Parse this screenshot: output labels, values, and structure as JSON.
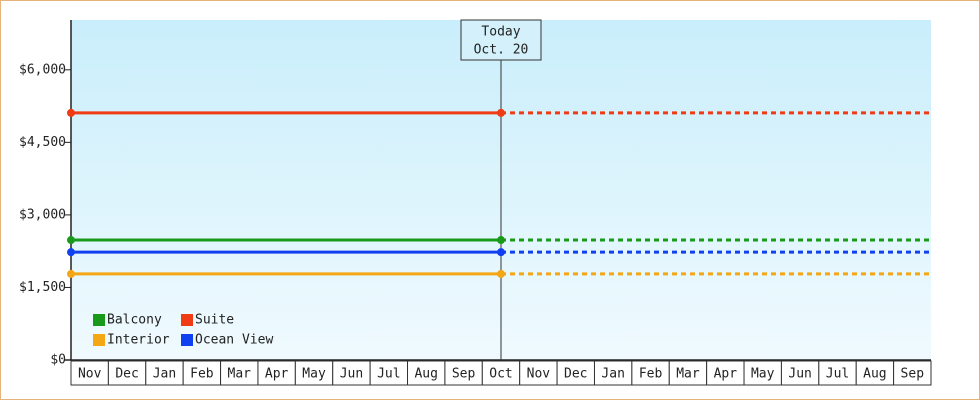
{
  "chart_data": {
    "type": "line",
    "categories": [
      "Nov",
      "Dec",
      "Jan",
      "Feb",
      "Mar",
      "Apr",
      "May",
      "Jun",
      "Jul",
      "Aug",
      "Sep",
      "Oct",
      "Nov",
      "Dec",
      "Jan",
      "Feb",
      "Mar",
      "Apr",
      "May",
      "Jun",
      "Jul",
      "Aug",
      "Sep"
    ],
    "series": [
      {
        "name": "Balcony",
        "color": "#1a9a1a",
        "value": 2480
      },
      {
        "name": "Suite",
        "color": "#f03c14",
        "value": 5110
      },
      {
        "name": "Interior",
        "color": "#f5a614",
        "value": 1780
      },
      {
        "name": "Ocean View",
        "color": "#1040f0",
        "value": 2230
      }
    ],
    "annotation": {
      "text": [
        "Today",
        "Oct. 20"
      ],
      "category": "Oct"
    },
    "ylim": [
      0,
      7030
    ],
    "yticks": [
      {
        "value": 0,
        "label": "$0"
      },
      {
        "value": 1500,
        "label": "$1,500"
      },
      {
        "value": 3000,
        "label": "$3,000"
      },
      {
        "value": 4500,
        "label": "$4,500"
      },
      {
        "value": 6000,
        "label": "$6,000"
      }
    ],
    "legend": "bottom-left"
  }
}
